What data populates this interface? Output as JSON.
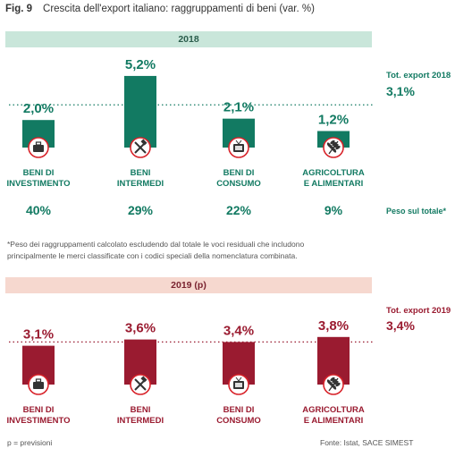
{
  "figure": {
    "number": "Fig. 9",
    "title": "Crescita dell'export italiano: raggruppamenti di beni (var. %)"
  },
  "colors": {
    "green": "#127a62",
    "red": "#9a1b30",
    "icon_red": "#d8232a"
  },
  "icons": [
    "briefcase-icon",
    "hammer-wrench-icon",
    "tv-icon",
    "wheat-icon"
  ],
  "chart_data": [
    {
      "type": "bar",
      "title": "2018",
      "categories": [
        "BENI DI\nINVESTIMENTO",
        "BENI\nINTERMEDI",
        "BENI DI\nCONSUMO",
        "AGRICOLTURA\nE ALIMENTARI"
      ],
      "values": [
        2.0,
        5.2,
        2.1,
        1.2
      ],
      "value_labels": [
        "2,0%",
        "5,2%",
        "2,1%",
        "1,2%"
      ],
      "reference_line": {
        "label": "Tot. export 2018",
        "value": 3.1,
        "value_label": "3,1%"
      },
      "weights": {
        "label": "Peso sul totale*",
        "values": [
          "40%",
          "29%",
          "22%",
          "9%"
        ]
      },
      "ylim": [
        0,
        6
      ]
    },
    {
      "type": "bar",
      "title": "2019 (p)",
      "categories": [
        "BENI DI\nINVESTIMENTO",
        "BENI\nINTERMEDI",
        "BENI DI\nCONSUMO",
        "AGRICOLTURA\nE ALIMENTARI"
      ],
      "values": [
        3.1,
        3.6,
        3.4,
        3.8
      ],
      "value_labels": [
        "3,1%",
        "3,6%",
        "3,4%",
        "3,8%"
      ],
      "reference_line": {
        "label": "Tot. export 2019",
        "value": 3.4,
        "value_label": "3,4%"
      },
      "ylim": [
        0,
        6
      ]
    }
  ],
  "footnote": "*Peso dei raggruppamenti calcolato escludendo dal totale le voci residuali che includono principalmente le merci classificate con i codici speciali della nomenclatura combinata.",
  "legend_note": "p = previsioni",
  "source": "Fonte: Istat, SACE SIMEST"
}
